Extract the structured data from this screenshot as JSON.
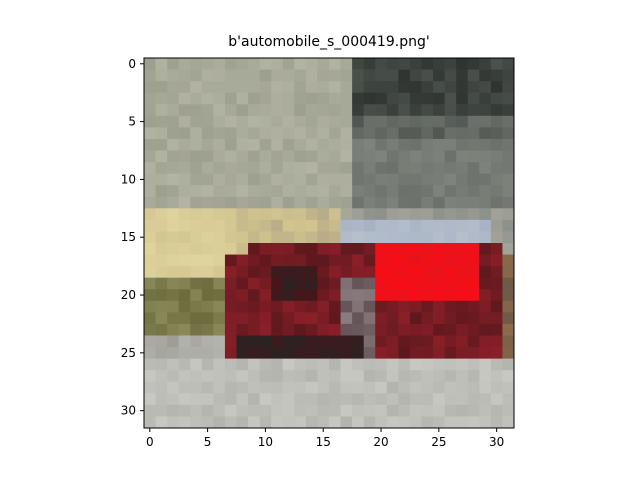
{
  "figure": {
    "title": "b'automobile_s_000419.png'"
  },
  "image": {
    "grid_size": [
      32,
      32
    ],
    "x_ticks": [
      "0",
      "5",
      "10",
      "15",
      "20",
      "25",
      "30"
    ],
    "y_ticks": [
      "0",
      "5",
      "10",
      "15",
      "20",
      "25",
      "30"
    ],
    "x_tick_values": [
      0,
      5,
      10,
      15,
      20,
      25,
      30
    ],
    "y_tick_values": [
      0,
      5,
      10,
      15,
      20,
      25,
      30
    ],
    "colors": {
      "wall_left": "#9ea08f",
      "wall_right": "#6c716b",
      "dark_window": "#2f3430",
      "ground": "#b4b4ae",
      "ground_light": "#c8c8c2",
      "sign_yellow": "#d2c58f",
      "olive": "#6b6b3e",
      "car_red": "#8a1f28",
      "car_bright": "#e8131c",
      "car_dark": "#4a1519",
      "roof": "#a7b3c4",
      "tire": "#2b2222"
    }
  }
}
